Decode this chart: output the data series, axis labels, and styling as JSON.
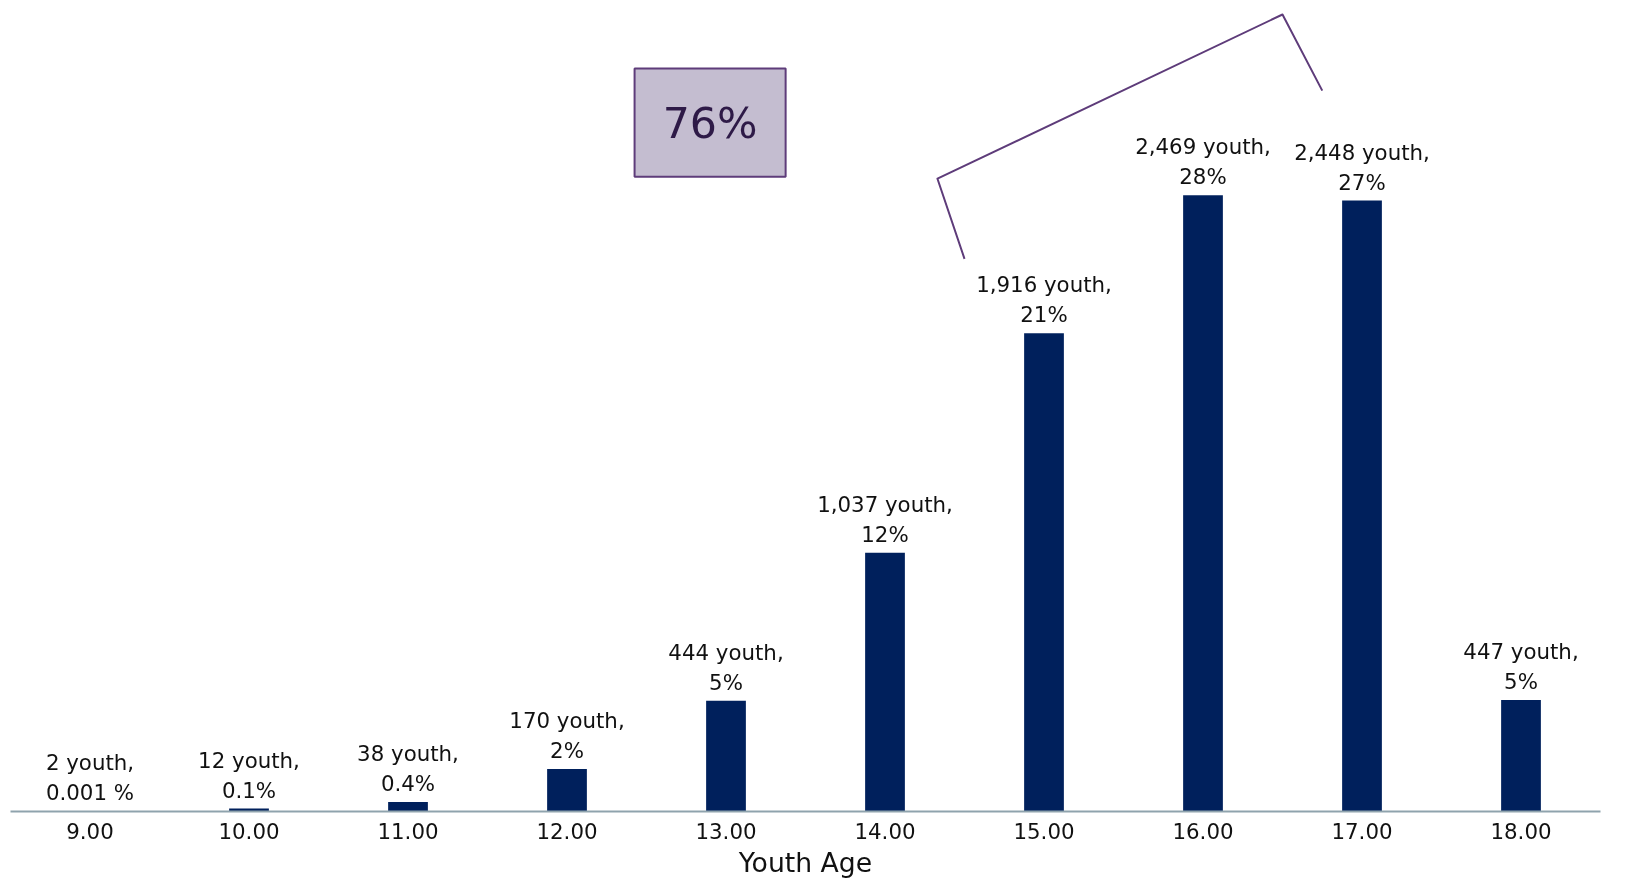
{
  "chart_data": {
    "type": "bar",
    "xlabel": "Youth Age",
    "categories": [
      "9.00",
      "10.00",
      "11.00",
      "12.00",
      "13.00",
      "14.00",
      "15.00",
      "16.00",
      "17.00",
      "18.00"
    ],
    "values": [
      2,
      12,
      38,
      170,
      444,
      1037,
      1916,
      2469,
      2448,
      447
    ],
    "value_labels": [
      "2 youth,\n0.001 %",
      "12 youth,\n0.1%",
      "38 youth,\n0.4%",
      "170 youth,\n2%",
      "444 youth,\n5%",
      "1,037 youth,\n12%",
      "1,916 youth,\n21%",
      "2,469 youth,\n28%",
      "2,448 youth,\n27%",
      "447 youth,\n5%"
    ],
    "color": "#00205c",
    "grid": false,
    "annotations": [
      "76%"
    ]
  }
}
